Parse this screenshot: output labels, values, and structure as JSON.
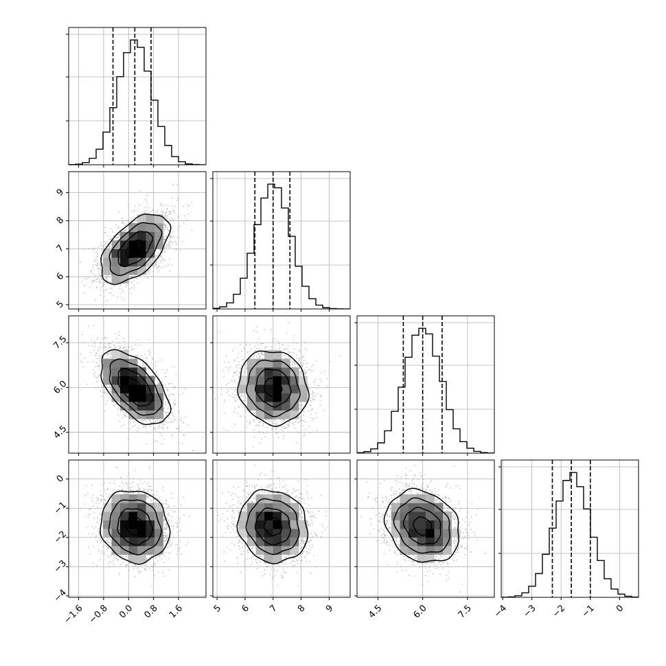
{
  "chart_data": {
    "type": "corner",
    "title": "",
    "parameters": [
      {
        "name": "",
        "range": [
          -1.92,
          2.48
        ],
        "quantiles": [
          -0.5,
          0.2,
          0.72
        ],
        "ticks": [
          -1.6,
          -0.8,
          0.0,
          0.8,
          1.6
        ],
        "tick_labels": [
          "−1.6",
          "−0.8",
          "0.0",
          "0.8",
          "1.6"
        ],
        "mean": 0.2,
        "sd": 0.55
      },
      {
        "name": "",
        "range": [
          4.85,
          9.75
        ],
        "quantiles": [
          6.35,
          7.0,
          7.6
        ],
        "ticks": [
          5,
          6,
          7,
          8,
          9
        ],
        "tick_labels": [
          "5",
          "6",
          "7",
          "8",
          "9"
        ],
        "mean": 7.0,
        "sd": 0.62
      },
      {
        "name": "",
        "range": [
          3.8,
          8.4
        ],
        "quantiles": [
          5.35,
          6.0,
          6.65
        ],
        "ticks": [
          4.5,
          6.0,
          7.5
        ],
        "tick_labels": [
          "4.5",
          "6.0",
          "7.5"
        ],
        "mean": 6.0,
        "sd": 0.62
      },
      {
        "name": "",
        "range": [
          -4.05,
          0.65
        ],
        "quantiles": [
          -2.3,
          -1.65,
          -1.0
        ],
        "ticks": [
          -4,
          -3,
          -2,
          -1,
          0
        ],
        "tick_labels": [
          "−4",
          "−3",
          "−2",
          "−1",
          "0"
        ],
        "mean": -1.62,
        "sd": 0.62
      }
    ],
    "correlations": [
      [
        1.0,
        0.55,
        -0.55,
        -0.1
      ],
      [
        0.55,
        1.0,
        -0.1,
        -0.1
      ],
      [
        -0.55,
        -0.1,
        1.0,
        -0.2
      ],
      [
        -0.1,
        -0.1,
        -0.2,
        1.0
      ]
    ],
    "histogram_bins": 20,
    "grid": true,
    "quantile_style": "dashed"
  }
}
